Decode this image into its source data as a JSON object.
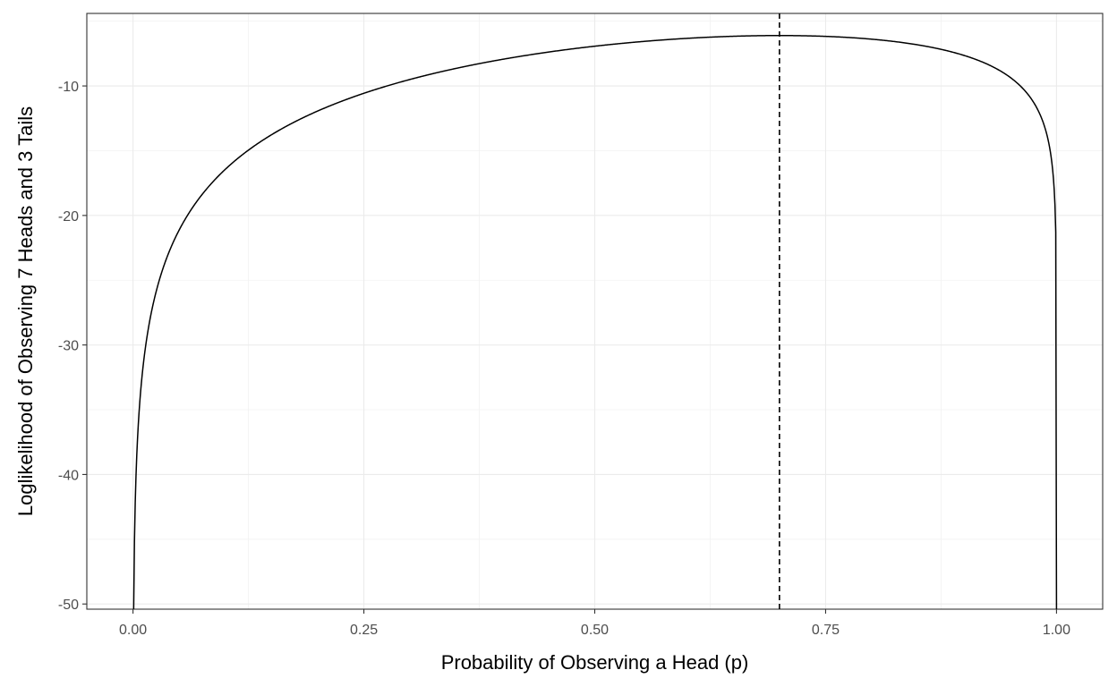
{
  "chart_data": {
    "type": "line",
    "title": "",
    "xlabel": "Probability of Observing a Head (p)",
    "ylabel": "Loglikelihood of Observing 7 Heads and 3 Tails",
    "xlim": [
      -0.05,
      1.05
    ],
    "ylim": [
      -50.4,
      -4.4
    ],
    "x_ticks": [
      0.0,
      0.25,
      0.5,
      0.75,
      1.0
    ],
    "x_tick_labels": [
      "0.00",
      "0.25",
      "0.50",
      "0.75",
      "1.00"
    ],
    "y_ticks": [
      -50,
      -40,
      -30,
      -20,
      -10
    ],
    "y_tick_labels": [
      "-50",
      "-40",
      "-30",
      "-20",
      "-10"
    ],
    "grid": true,
    "series": [
      {
        "function": "7*log(p) + 3*log(1-p)",
        "heads": 7,
        "tails": 3,
        "color": "#000000",
        "line_style": "solid"
      }
    ],
    "reference_lines": [
      {
        "orientation": "vertical",
        "x": 0.7,
        "style": "dashed",
        "color": "#000000"
      }
    ]
  }
}
